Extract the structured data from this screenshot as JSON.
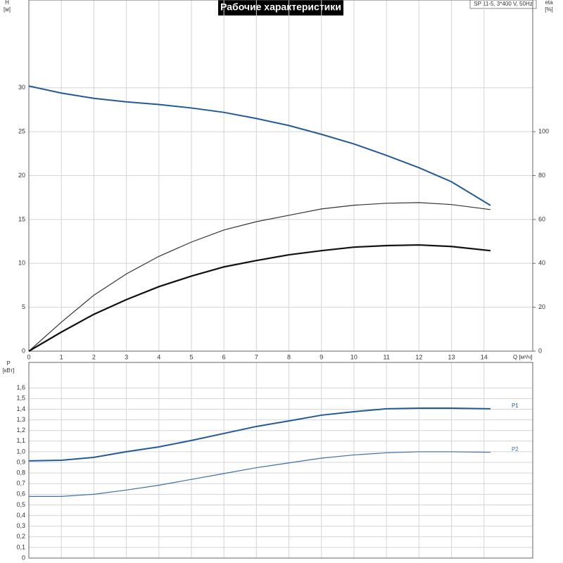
{
  "chart_data": [
    {
      "type": "line",
      "title": "Рабочие характеристики",
      "annotation": "SP 11-5, 3*400 V, 50Hz",
      "xlabel": "Q [м³/ч]",
      "ylabel": [
        "H",
        "[м]"
      ],
      "y2label": [
        "eta",
        "[%]"
      ],
      "x": [
        0,
        1,
        2,
        3,
        4,
        5,
        6,
        7,
        8,
        9,
        10,
        11,
        12,
        13,
        14.2
      ],
      "xlim": [
        0,
        15.5
      ],
      "xticks": [
        0,
        1,
        2,
        3,
        4,
        5,
        6,
        7,
        8,
        9,
        10,
        11,
        12,
        13,
        14
      ],
      "ylim": [
        0,
        40
      ],
      "yticks": [
        0,
        5,
        10,
        15,
        20,
        25,
        30
      ],
      "y2lim": [
        0,
        160
      ],
      "y2ticks": [
        0,
        20,
        40,
        60,
        80,
        100
      ],
      "grid": true,
      "series": [
        {
          "color": "#235a96",
          "width": 2,
          "values": [
            30.2,
            29.4,
            28.8,
            28.4,
            28.1,
            27.7,
            27.2,
            26.5,
            25.7,
            24.7,
            23.6,
            22.3,
            20.9,
            19.3,
            16.6
          ]
        },
        {
          "color": "#333333",
          "width": 1.2,
          "axis": "y2",
          "values": [
            0,
            13.2,
            25.5,
            35.2,
            43.2,
            49.7,
            55.2,
            59.0,
            61.9,
            64.8,
            66.5,
            67.4,
            67.7,
            66.8,
            64.5
          ]
        },
        {
          "color": "#111111",
          "width": 2.2,
          "axis": "y2",
          "values": [
            0,
            8.7,
            16.8,
            23.5,
            29.4,
            34.2,
            38.4,
            41.3,
            43.9,
            45.8,
            47.4,
            48.1,
            48.4,
            47.7,
            45.8
          ]
        }
      ]
    },
    {
      "type": "line",
      "ylabel": [
        "P",
        "[кВт]"
      ],
      "x": [
        0,
        1,
        2,
        3,
        4,
        5,
        6,
        7,
        8,
        9,
        10,
        11,
        12,
        13,
        14.2
      ],
      "xlim": [
        0,
        15.5
      ],
      "ylim": [
        0,
        1.84
      ],
      "yticks": [
        0,
        {
          "value": 0.1,
          "label": "0,1"
        },
        {
          "value": 0.2,
          "label": "0,2"
        },
        {
          "value": 0.3,
          "label": "0,3"
        },
        {
          "value": 0.4,
          "label": "0,4"
        },
        {
          "value": 0.5,
          "label": "0,5"
        },
        {
          "value": 0.6,
          "label": "0,6"
        },
        {
          "value": 0.7,
          "label": "0,7"
        },
        {
          "value": 0.8,
          "label": "0,8"
        },
        {
          "value": 0.9,
          "label": "0,9"
        },
        {
          "value": 1.0,
          "label": "1,0"
        },
        {
          "value": 1.1,
          "label": "1,1"
        },
        {
          "value": 1.2,
          "label": "1,2"
        },
        {
          "value": 1.3,
          "label": "1,3"
        },
        {
          "value": 1.4,
          "label": "1,4"
        },
        {
          "value": 1.5,
          "label": "1,5"
        },
        {
          "value": 1.6,
          "label": "1,6"
        }
      ],
      "grid": true,
      "series": [
        {
          "name": "P1",
          "color": "#235a96",
          "width": 2,
          "values": [
            0.914,
            0.92,
            0.947,
            1.0,
            1.046,
            1.106,
            1.172,
            1.238,
            1.29,
            1.344,
            1.377,
            1.404,
            1.41,
            1.41,
            1.404
          ]
        },
        {
          "name": "P2",
          "color": "#3a6fa8",
          "width": 1.2,
          "values": [
            0.58,
            0.58,
            0.6,
            0.64,
            0.685,
            0.74,
            0.795,
            0.85,
            0.895,
            0.94,
            0.97,
            0.99,
            1.0,
            1.0,
            0.995
          ]
        }
      ]
    }
  ]
}
